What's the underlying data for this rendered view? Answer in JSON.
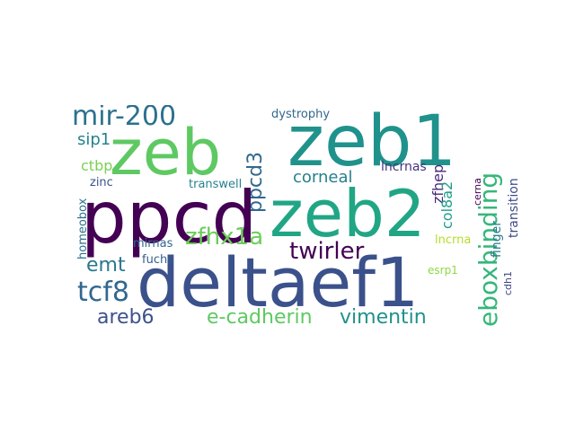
{
  "words": [
    {
      "text": "deltaef1",
      "color": "#3b518b"
    },
    {
      "text": "zeb2",
      "color": "#21a685"
    },
    {
      "text": "zeb1",
      "color": "#20928c"
    },
    {
      "text": "ppcd",
      "color": "#440154"
    },
    {
      "text": "zeb",
      "color": "#5ec962"
    },
    {
      "text": "eboxbinding",
      "color": "#35b779"
    },
    {
      "text": "ppcd3",
      "color": "#31688e"
    },
    {
      "text": "mir-200",
      "color": "#2c718e"
    },
    {
      "text": "zfhx1a",
      "color": "#6ccd5a"
    },
    {
      "text": "twirler",
      "color": "#440154"
    },
    {
      "text": "tcf8",
      "color": "#31688e"
    },
    {
      "text": "emt",
      "color": "#2a788e"
    },
    {
      "text": "e-cadherin",
      "color": "#5ec962"
    },
    {
      "text": "vimentin",
      "color": "#21918c"
    },
    {
      "text": "areb6",
      "color": "#3b528b"
    },
    {
      "text": "corneal",
      "color": "#277f8e"
    },
    {
      "text": "zfhep",
      "color": "#482878"
    },
    {
      "text": "col8a2",
      "color": "#1f9e89"
    },
    {
      "text": "sip1",
      "color": "#26828e"
    },
    {
      "text": "ctbp",
      "color": "#7ad151"
    },
    {
      "text": "finger",
      "color": "#2a788e"
    },
    {
      "text": "transition",
      "color": "#3e4a89"
    },
    {
      "text": "lncrnas",
      "color": "#46337e"
    },
    {
      "text": "dystrophy",
      "color": "#31688e"
    },
    {
      "text": "transwell",
      "color": "#26828e"
    },
    {
      "text": "zinc",
      "color": "#3b528b"
    },
    {
      "text": "homeobox",
      "color": "#2c728e"
    },
    {
      "text": "mirnas",
      "color": "#31688e"
    },
    {
      "text": "lncrna",
      "color": "#b5de2b"
    },
    {
      "text": "fuchs",
      "color": "#355f8d"
    },
    {
      "text": "esrp1",
      "color": "#8fd744"
    },
    {
      "text": "cerna",
      "color": "#440154"
    },
    {
      "text": "cdh1",
      "color": "#404688"
    }
  ]
}
